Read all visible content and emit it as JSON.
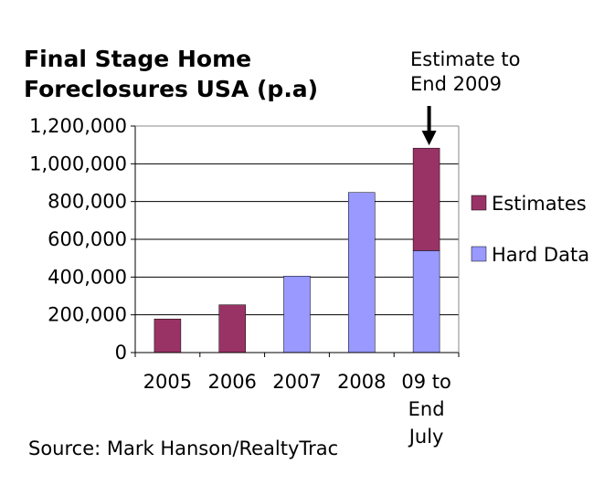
{
  "chart_data": {
    "type": "bar",
    "stacked": true,
    "title_lines": [
      "Final Stage Home",
      "Foreclosures USA (p.a)"
    ],
    "categories": [
      [
        "2005"
      ],
      [
        "2006"
      ],
      [
        "2007"
      ],
      [
        "2008"
      ],
      [
        "09 to",
        "End",
        "July"
      ]
    ],
    "series": [
      {
        "name": "Hard Data",
        "color": "#9999ff",
        "values": [
          0,
          0,
          405000,
          848000,
          540000
        ]
      },
      {
        "name": "Estimates",
        "color": "#993366",
        "values": [
          178000,
          253000,
          0,
          0,
          543000
        ]
      }
    ],
    "legend": [
      "Estimates",
      "Hard Data"
    ],
    "legend_placement": "right",
    "ylim": [
      0,
      1200000
    ],
    "yticks": [
      "0",
      "200,000",
      "400,000",
      "600,000",
      "800,000",
      "1,000,000",
      "1,200,000"
    ],
    "ytick_values": [
      0,
      200000,
      400000,
      600000,
      800000,
      1000000,
      1200000
    ],
    "grid": true,
    "annotation": {
      "lines": [
        "Estimate to",
        "End 2009"
      ],
      "target_category": 4
    },
    "source": "Source: Mark Hanson/RealtyTrac"
  }
}
